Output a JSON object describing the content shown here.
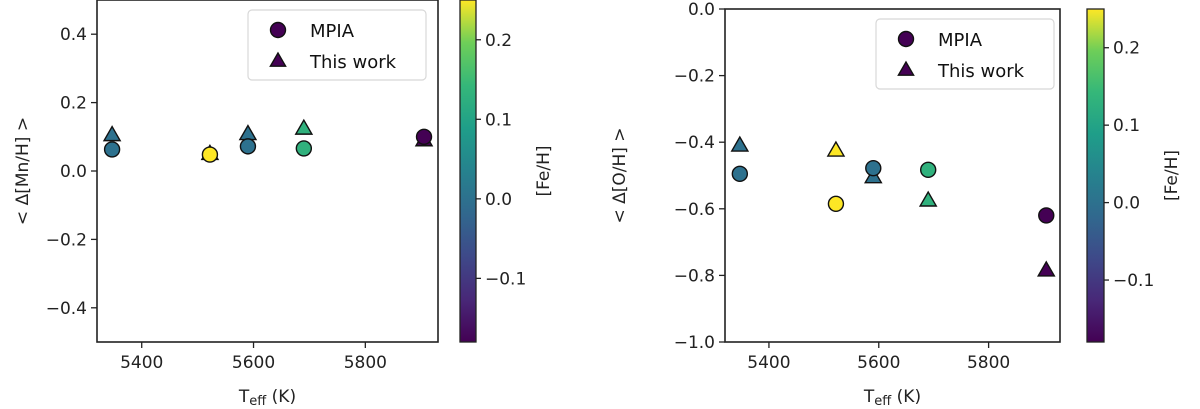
{
  "chart_data": [
    {
      "type": "scatter",
      "title": "",
      "xlabel": "T_eff (K)",
      "xlabel_main": "T",
      "xlabel_sub": "eff",
      "xlabel_unit": "(K)",
      "ylabel": "< Δ[Mn/H] >",
      "xlim": [
        5320,
        5930
      ],
      "ylim": [
        -0.5,
        0.5
      ],
      "xticks": [
        5400,
        5600,
        5800
      ],
      "xtick_labels": [
        "5400",
        "5600",
        "5800"
      ],
      "yticks": [
        0.4,
        0.2,
        0.0,
        -0.2,
        -0.4
      ],
      "ytick_labels": [
        "0.4",
        "0.2",
        "0.0",
        "−0.2",
        "−0.4"
      ],
      "grid": false,
      "legend": {
        "position": "upper right",
        "entries": [
          "MPIA",
          "This work"
        ]
      },
      "colorbar": {
        "label": "[Fe/H]",
        "range": [
          -0.18,
          0.25
        ],
        "ticks": [
          0.2,
          0.1,
          0.0,
          -0.1
        ],
        "tick_labels": [
          "0.2",
          "0.1",
          "0.0",
          "−0.1"
        ],
        "colormap": "viridis"
      },
      "series": [
        {
          "name": "MPIA",
          "marker": "circle",
          "points": [
            {
              "x": 5347,
              "y": 0.063,
              "feh": 0.0
            },
            {
              "x": 5522,
              "y": 0.048,
              "feh": 0.25
            },
            {
              "x": 5590,
              "y": 0.072,
              "feh": 0.0
            },
            {
              "x": 5690,
              "y": 0.066,
              "feh": 0.13
            },
            {
              "x": 5905,
              "y": 0.1,
              "feh": -0.18
            }
          ]
        },
        {
          "name": "This work",
          "marker": "triangle",
          "points": [
            {
              "x": 5347,
              "y": 0.105,
              "feh": 0.0
            },
            {
              "x": 5522,
              "y": 0.05,
              "feh": 0.25
            },
            {
              "x": 5590,
              "y": 0.108,
              "feh": 0.0
            },
            {
              "x": 5690,
              "y": 0.124,
              "feh": 0.13
            },
            {
              "x": 5905,
              "y": 0.09,
              "feh": -0.18
            }
          ]
        }
      ]
    },
    {
      "type": "scatter",
      "title": "",
      "xlabel": "T_eff (K)",
      "xlabel_main": "T",
      "xlabel_sub": "eff",
      "xlabel_unit": "(K)",
      "ylabel": "< Δ[O/H] >",
      "xlim": [
        5320,
        5930
      ],
      "ylim": [
        -1.0,
        0.0
      ],
      "xticks": [
        5400,
        5600,
        5800
      ],
      "xtick_labels": [
        "5400",
        "5600",
        "5800"
      ],
      "yticks": [
        0.0,
        -0.2,
        -0.4,
        -0.6,
        -0.8,
        -1.0
      ],
      "ytick_labels": [
        "0.0",
        "−0.2",
        "−0.4",
        "−0.6",
        "−0.8",
        "−1.0"
      ],
      "grid": false,
      "legend": {
        "position": "upper right",
        "entries": [
          "MPIA",
          "This work"
        ]
      },
      "colorbar": {
        "label": "[Fe/H]",
        "range": [
          -0.18,
          0.25
        ],
        "ticks": [
          0.2,
          0.1,
          0.0,
          -0.1
        ],
        "tick_labels": [
          "0.2",
          "0.1",
          "0.0",
          "−0.1"
        ],
        "colormap": "viridis"
      },
      "series": [
        {
          "name": "MPIA",
          "marker": "circle",
          "points": [
            {
              "x": 5347,
              "y": -0.495,
              "feh": 0.0
            },
            {
              "x": 5522,
              "y": -0.585,
              "feh": 0.25
            },
            {
              "x": 5590,
              "y": -0.478,
              "feh": 0.0
            },
            {
              "x": 5690,
              "y": -0.483,
              "feh": 0.13
            },
            {
              "x": 5905,
              "y": -0.62,
              "feh": -0.18
            }
          ]
        },
        {
          "name": "This work",
          "marker": "triangle",
          "points": [
            {
              "x": 5347,
              "y": -0.41,
              "feh": 0.0
            },
            {
              "x": 5522,
              "y": -0.425,
              "feh": 0.25
            },
            {
              "x": 5590,
              "y": -0.505,
              "feh": 0.0
            },
            {
              "x": 5690,
              "y": -0.575,
              "feh": 0.13
            },
            {
              "x": 5905,
              "y": -0.785,
              "feh": -0.18
            }
          ]
        }
      ]
    }
  ],
  "colors": {
    "feh_-0.18": "#440154",
    "feh_0.0": "#277f8e",
    "feh_0.13": "#4ac16d",
    "feh_0.25": "#fde725",
    "legend_marker": "#440154",
    "axes": "#222222"
  }
}
